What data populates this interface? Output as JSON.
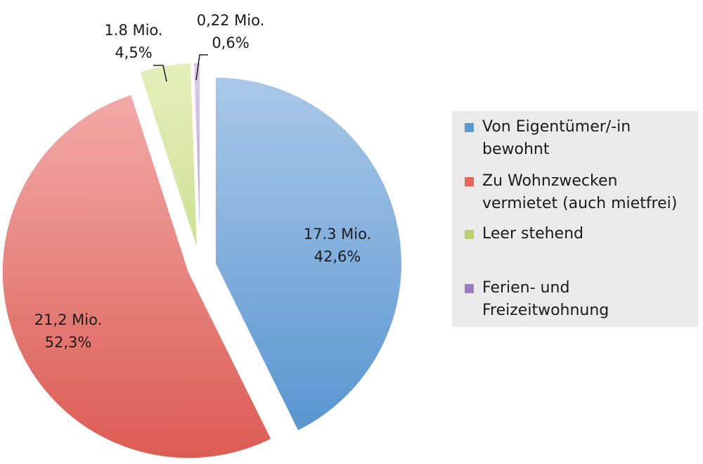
{
  "chart_data": {
    "type": "pie",
    "title": "",
    "unit": "Mio.",
    "slices": [
      {
        "name_lines": [
          "Von Eigentümer/-in",
          "bewohnt"
        ],
        "value": 17.3,
        "percent": 42.6,
        "value_label": "17.3 Mio.",
        "percent_label": "42,6%",
        "color_light": "#aac8e8",
        "color_dark": "#5a96d0",
        "legend_color": "#5b9bd5"
      },
      {
        "name_lines": [
          "Zu Wohnzwecken",
          "vermietet (auch mietfrei)"
        ],
        "value": 21.2,
        "percent": 52.3,
        "value_label": "21,2 Mio.",
        "percent_label": "52,3%",
        "color_light": "#f2aaa8",
        "color_dark": "#dc5c54",
        "legend_color": "#e8645c"
      },
      {
        "name_lines": [
          "Leer stehend"
        ],
        "value": 1.8,
        "percent": 4.5,
        "value_label": "1.8 Mio.",
        "percent_label": "4,5%",
        "color_light": "#e6efbc",
        "color_dark": "#cde095",
        "legend_color": "#b8d26a"
      },
      {
        "name_lines": [
          "Ferien- und",
          "Freizeitwohnung"
        ],
        "value": 0.22,
        "percent": 0.6,
        "value_label": "0,22 Mio.",
        "percent_label": "0,6%",
        "color_light": "#dccdea",
        "color_dark": "#b9a1d3",
        "legend_color": "#9b7dc4"
      }
    ],
    "legend": {
      "position": "right",
      "background": "#ebebeb"
    }
  }
}
